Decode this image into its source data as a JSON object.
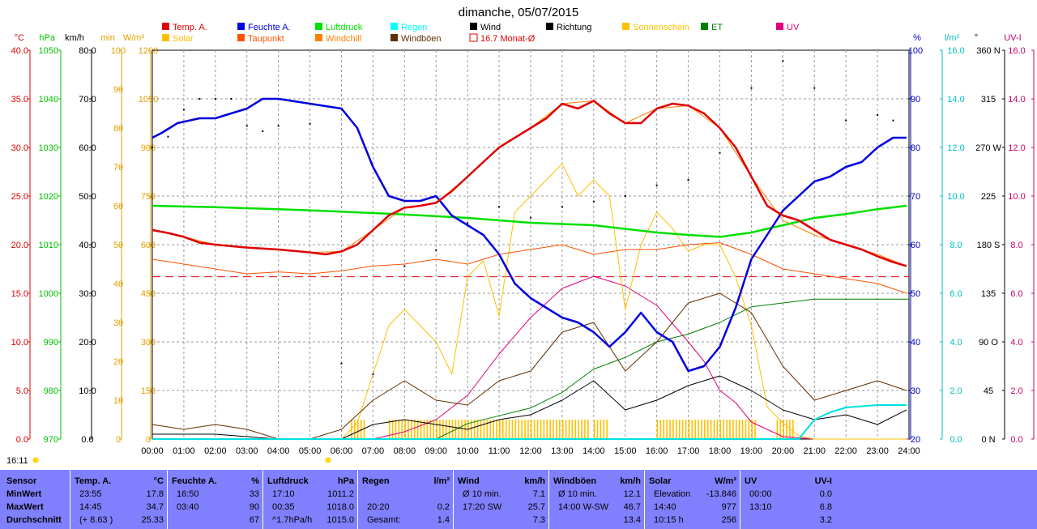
{
  "title": "dimanche, 05/07/2015",
  "current_time": "16:11",
  "legend": [
    {
      "label": "Temp. A.",
      "color": "#e00000",
      "kind": "fill"
    },
    {
      "label": "Solar",
      "color": "#ffc000",
      "kind": "fill"
    },
    {
      "label": "Feuchte A.",
      "color": "#0000e0",
      "kind": "fill"
    },
    {
      "label": "Taupunkt",
      "color": "#ff5000",
      "kind": "fill"
    },
    {
      "label": "Luftdruck",
      "color": "#00e000",
      "kind": "fill"
    },
    {
      "label": "Windchill",
      "color": "#ff8000",
      "kind": "fill"
    },
    {
      "label": "Regen",
      "color": "#00ffff",
      "kind": "fill"
    },
    {
      "label": "Windböen",
      "color": "#603000",
      "kind": "fill"
    },
    {
      "label": "Wind",
      "color": "#000000",
      "kind": "fill"
    },
    {
      "label": "16.7 Monat-Ø",
      "color": "#e00000",
      "kind": "outline"
    },
    {
      "label": "Richtung",
      "color": "#000000",
      "kind": "fill"
    },
    {
      "label": "Sonnenschein",
      "color": "#ffc000",
      "kind": "fill"
    },
    {
      "label": "ET",
      "color": "#008000",
      "kind": "fill"
    },
    {
      "label": "UV",
      "color": "#e0007a",
      "kind": "fill"
    }
  ],
  "axes": {
    "temp": {
      "unit": "°C",
      "color": "#e00000",
      "ticks": [
        "40.0",
        "35.0",
        "30.0",
        "25.0",
        "20.0",
        "15.0",
        "10.0",
        "5.0",
        "0.0"
      ]
    },
    "pressure": {
      "unit": "hPa",
      "color": "#00c000",
      "ticks": [
        "1050",
        "1040",
        "1030",
        "1020",
        "1010",
        "1000",
        "990",
        "980",
        "970"
      ]
    },
    "wind": {
      "unit": "km/h",
      "color": "#000000",
      "ticks": [
        "80.0",
        "70.0",
        "60.0",
        "50.0",
        "40.0",
        "30.0",
        "20.0",
        "10.0",
        "0.0"
      ]
    },
    "minutes": {
      "unit": "min",
      "color": "#e0a000",
      "ticks": [
        "100",
        "90",
        "80",
        "70",
        "60",
        "50",
        "40",
        "30",
        "20",
        "10",
        "0"
      ]
    },
    "solar": {
      "unit": "W/m²",
      "color": "#e0a000",
      "ticks": [
        "1200",
        "1050",
        "900",
        "750",
        "600",
        "450",
        "300",
        "150",
        "0"
      ]
    },
    "humidity": {
      "unit": "%",
      "color": "#0000c0",
      "ticks": [
        "100",
        "90",
        "80",
        "70",
        "60",
        "50",
        "40",
        "30",
        "20"
      ]
    },
    "rain": {
      "unit": "l/m²",
      "color": "#00c0c0",
      "ticks": [
        "16.0",
        "14.0",
        "12.0",
        "10.0",
        "8.0",
        "6.0",
        "4.0",
        "2.0",
        "0.0"
      ]
    },
    "direction": {
      "unit": "°",
      "color": "#000000",
      "ticks": [
        "360 N",
        "315",
        "270 W",
        "225",
        "180 S",
        "135",
        "90 O",
        "45",
        "0 N"
      ]
    },
    "uv": {
      "unit": "UV-I",
      "color": "#c0006a",
      "ticks": [
        "16.0",
        "14.0",
        "12.0",
        "10.0",
        "8.0",
        "6.0",
        "4.0",
        "2.0",
        "0.0"
      ]
    }
  },
  "x_ticks": [
    "00:00",
    "01:00",
    "02:00",
    "03:00",
    "04:00",
    "05:00",
    "06:00",
    "07:00",
    "08:00",
    "09:00",
    "10:00",
    "11:00",
    "12:00",
    "13:00",
    "14:00",
    "15:00",
    "16:00",
    "17:00",
    "18:00",
    "19:00",
    "20:00",
    "21:00",
    "22:00",
    "23:00",
    "24:00"
  ],
  "chart_data": {
    "type": "line",
    "title": "dimanche, 05/07/2015",
    "x_unit": "hour",
    "xlim": [
      0,
      24
    ],
    "grid": true,
    "month_avg_temp": 16.7,
    "series": [
      {
        "name": "Temp. A.",
        "axis": "temp",
        "color": "#e00000",
        "x": [
          0,
          0.5,
          1,
          1.5,
          2,
          3,
          4,
          5,
          5.5,
          6,
          6.5,
          7,
          7.5,
          8,
          8.5,
          9,
          9.5,
          10,
          10.5,
          11,
          11.5,
          12,
          12.5,
          13,
          13.5,
          14,
          14.5,
          15,
          15.5,
          16,
          16.5,
          17,
          17.5,
          18,
          18.5,
          19,
          19.5,
          20,
          20.5,
          21,
          21.5,
          22,
          22.5,
          23,
          23.5,
          23.92
        ],
        "y": [
          21.5,
          21.2,
          20.8,
          20.2,
          20.0,
          19.7,
          19.5,
          19.2,
          19.0,
          19.3,
          20.0,
          21.5,
          23.0,
          23.8,
          24.0,
          24.3,
          25.5,
          27.0,
          28.5,
          30.0,
          31.0,
          32.0,
          33.0,
          34.5,
          34.0,
          34.8,
          33.5,
          32.5,
          32.5,
          34.0,
          34.5,
          34.3,
          33.5,
          32.0,
          30.0,
          27.0,
          24.0,
          23.0,
          22.5,
          21.5,
          20.5,
          20.0,
          19.5,
          18.8,
          18.2,
          17.8
        ]
      },
      {
        "name": "Feuchte A.",
        "axis": "humidity",
        "color": "#0000e0",
        "x": [
          0,
          0.3,
          0.8,
          1.5,
          2,
          3,
          3.5,
          4,
          5,
          6,
          6.5,
          7,
          7.5,
          8,
          8.5,
          9,
          9.5,
          10,
          10.5,
          11,
          11.5,
          12,
          12.5,
          13,
          13.5,
          14,
          14.5,
          15,
          15.5,
          16,
          16.5,
          17,
          17.5,
          18,
          18.5,
          19,
          19.5,
          20,
          20.5,
          21,
          21.5,
          22,
          22.5,
          23,
          23.5,
          23.92
        ],
        "y": [
          82,
          83,
          85,
          86,
          86,
          88,
          90,
          90,
          89,
          88,
          84,
          76,
          70,
          69,
          69,
          70,
          66,
          64,
          62,
          58,
          52,
          49,
          47,
          45,
          44,
          42,
          39,
          42,
          46,
          42,
          40,
          34,
          35,
          39,
          47,
          57,
          62,
          67,
          70,
          73,
          74,
          76,
          77,
          80,
          82,
          82
        ]
      },
      {
        "name": "Luftdruck",
        "axis": "pressure",
        "color": "#00e000",
        "x": [
          0,
          2,
          4,
          6,
          8,
          10,
          12,
          14,
          16,
          17,
          18,
          19,
          20,
          21,
          22,
          23,
          23.92
        ],
        "y": [
          1018.0,
          1017.7,
          1017.3,
          1016.8,
          1016.2,
          1015.5,
          1014.5,
          1014.0,
          1012.5,
          1012.0,
          1011.6,
          1012.5,
          1014.0,
          1015.5,
          1016.3,
          1017.3,
          1018.0
        ]
      },
      {
        "name": "Taupunkt",
        "axis": "temp",
        "color": "#ff5000",
        "x": [
          0,
          1,
          2,
          3,
          4,
          5,
          6,
          7,
          8,
          9,
          10,
          11,
          12,
          13,
          14,
          15,
          16,
          17,
          18,
          19,
          20,
          21,
          22,
          23,
          23.92
        ],
        "y": [
          18.5,
          18.0,
          17.5,
          17.0,
          17.2,
          17.0,
          17.3,
          17.8,
          18.0,
          18.5,
          18.0,
          19.0,
          19.5,
          20.0,
          19.0,
          19.5,
          19.5,
          20.0,
          20.2,
          19.0,
          17.5,
          17.0,
          16.5,
          16.0,
          15.0
        ]
      },
      {
        "name": "Windchill",
        "axis": "temp",
        "color": "#ff8000",
        "x": [
          0,
          1,
          2,
          3,
          4,
          5,
          6,
          7,
          8,
          9,
          10,
          11,
          12,
          13,
          14,
          15,
          16,
          17,
          18,
          19,
          20,
          21,
          22,
          23,
          23.92
        ],
        "y": [
          21.5,
          20.8,
          20.0,
          19.7,
          19.5,
          19.2,
          19.3,
          21.5,
          23.8,
          24.3,
          27.0,
          30.0,
          32.0,
          34.5,
          34.8,
          32.5,
          34.0,
          34.3,
          32.0,
          27.0,
          22.5,
          21.0,
          20.0,
          19.0,
          17.8
        ]
      },
      {
        "name": "Wind",
        "axis": "wind",
        "color": "#000000",
        "x": [
          0,
          2,
          4,
          6,
          7,
          8,
          9,
          10,
          11,
          12,
          13,
          14,
          15,
          16,
          17,
          18,
          19,
          20,
          21,
          22,
          23,
          23.92
        ],
        "y": [
          1,
          1,
          0,
          0,
          3,
          4,
          3,
          2,
          4,
          5,
          8,
          12,
          6,
          8,
          11,
          13,
          10,
          6,
          4,
          5,
          3,
          6
        ]
      },
      {
        "name": "Windböen",
        "axis": "wind",
        "color": "#603000",
        "x": [
          0,
          1,
          2,
          3,
          4,
          5,
          6,
          7,
          8,
          9,
          10,
          11,
          12,
          13,
          14,
          15,
          16,
          17,
          18,
          19,
          20,
          21,
          22,
          23,
          23.92
        ],
        "y": [
          3,
          2,
          3,
          2,
          0,
          0,
          2,
          8,
          12,
          8,
          7,
          12,
          14,
          22,
          24,
          14,
          20,
          28,
          30,
          26,
          15,
          8,
          10,
          12,
          10
        ]
      },
      {
        "name": "Solar",
        "axis": "solar",
        "color": "#ffc000",
        "x": [
          0,
          6,
          6.5,
          7,
          7.5,
          8,
          8.5,
          9,
          9.5,
          10,
          10.5,
          11,
          11.5,
          12,
          12.5,
          13,
          13.5,
          14,
          14.5,
          15,
          15.5,
          16,
          16.5,
          17,
          17.5,
          18,
          18.5,
          19,
          19.5,
          20,
          20.5,
          21,
          22,
          23,
          23.92
        ],
        "y": [
          0,
          0,
          50,
          200,
          350,
          400,
          350,
          300,
          200,
          500,
          550,
          380,
          700,
          750,
          800,
          850,
          750,
          800,
          750,
          400,
          600,
          700,
          650,
          580,
          600,
          600,
          500,
          350,
          100,
          50,
          10,
          0,
          0,
          0,
          0
        ]
      },
      {
        "name": "UV",
        "axis": "uv",
        "color": "#e0007a",
        "x": [
          0,
          7,
          8,
          9,
          10,
          11,
          12,
          13,
          14,
          15,
          16,
          17,
          17.5,
          18,
          18.5,
          19,
          20,
          21,
          24
        ],
        "y": [
          0,
          0,
          0.3,
          0.8,
          1.8,
          3.5,
          5.0,
          6.2,
          6.7,
          6.3,
          5.5,
          4.0,
          3.2,
          2.0,
          1.5,
          0.7,
          0.1,
          0,
          0
        ]
      },
      {
        "name": "ET",
        "axis": "minutes",
        "color": "#008000",
        "x": [
          0,
          9,
          10,
          11,
          12,
          13,
          14,
          15,
          16,
          17,
          18,
          19,
          20,
          21,
          22,
          24
        ],
        "y": [
          0,
          0,
          4,
          6,
          8,
          12,
          18,
          21,
          25,
          27,
          30,
          34,
          35,
          36,
          36,
          36
        ]
      },
      {
        "name": "Regen",
        "axis": "rain",
        "color": "#00e0e0",
        "x": [
          0,
          20.5,
          21,
          21.5,
          22,
          23,
          23.5,
          23.92
        ],
        "y": [
          0,
          0,
          0.8,
          1.1,
          1.3,
          1.4,
          1.4,
          1.4
        ]
      }
    ],
    "richtung_points": {
      "name": "Richtung",
      "axis": "direction",
      "color": "#000000",
      "x": [
        0,
        0.5,
        1,
        1.5,
        2,
        2.5,
        3,
        3.5,
        4,
        5,
        6,
        7,
        8,
        9,
        10,
        11,
        12,
        13,
        14,
        15,
        16,
        17,
        18,
        19,
        20,
        21,
        22,
        23,
        23.5
      ],
      "y": [
        270,
        280,
        305,
        315,
        315,
        315,
        290,
        285,
        290,
        292,
        70,
        60,
        160,
        175,
        200,
        215,
        205,
        215,
        220,
        225,
        235,
        240,
        265,
        325,
        350,
        325,
        295,
        300,
        295
      ]
    }
  },
  "stats": {
    "columns": [
      {
        "header": "Sensor",
        "unit": "",
        "rows": [
          "MinWert",
          "MaxWert",
          "Durchschnitt"
        ]
      },
      {
        "header": "Temp. A.",
        "unit": "°C",
        "rows": [
          [
            "23:55",
            "17.8"
          ],
          [
            "14:45",
            "34.7"
          ],
          [
            "(+ 8.63 )",
            "25.33"
          ]
        ]
      },
      {
        "header": "Feuchte A.",
        "unit": "%",
        "rows": [
          [
            "16:50",
            "33"
          ],
          [
            "03:40",
            "90"
          ],
          [
            "",
            "67"
          ]
        ]
      },
      {
        "header": "Luftdruck",
        "unit": "hPa",
        "rows": [
          [
            "17:10",
            "1011.2"
          ],
          [
            "00:35",
            "1018.0"
          ],
          [
            "^1.7hPa/h",
            "1015.0"
          ]
        ]
      },
      {
        "header": "Regen",
        "unit": "l/m²",
        "rows": [
          [
            "",
            ""
          ],
          [
            "20:20",
            "0.2"
          ],
          [
            "Gesamt:",
            "1.4"
          ]
        ]
      },
      {
        "header": "Wind",
        "unit": "km/h",
        "rows": [
          [
            "Ø 10 min.",
            "7.1"
          ],
          [
            "17:20 SW",
            "25.7"
          ],
          [
            "",
            "7.3"
          ]
        ]
      },
      {
        "header": "Windböen",
        "unit": "km/h",
        "rows": [
          [
            "Ø 10 min.",
            "12.1"
          ],
          [
            "14:00 W-SW",
            "46.7"
          ],
          [
            "",
            "13.4"
          ]
        ]
      },
      {
        "header": "Solar",
        "unit": "W/m²",
        "rows": [
          [
            "Elevation",
            "-13.846"
          ],
          [
            "14:40",
            "977"
          ],
          [
            "10:15 h",
            "256"
          ]
        ]
      },
      {
        "header": "UV",
        "unit": "UV-I",
        "rows": [
          [
            "00:00",
            "0.0"
          ],
          [
            "13:10",
            "6.8"
          ],
          [
            "",
            "3.2"
          ]
        ]
      }
    ]
  }
}
